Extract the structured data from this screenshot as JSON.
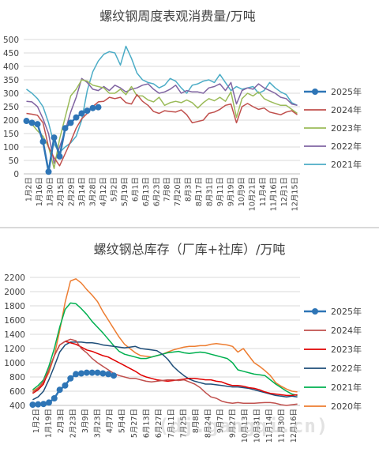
{
  "chart_data": [
    {
      "type": "line",
      "title": "螺纹钢周度表观消费量/万吨",
      "ylim": [
        0,
        500
      ],
      "yticks": [
        0,
        50,
        100,
        150,
        200,
        250,
        300,
        350,
        400,
        450,
        500
      ],
      "xticks": [
        "1月2日",
        "1月16日",
        "1月30日",
        "2月15日",
        "2月29日",
        "3月14日",
        "3月28日",
        "4月12日",
        "5月2日",
        "5月19日",
        "6月1日",
        "6月13日",
        "6月23日",
        "7月8日",
        "7月20日",
        "8月3日",
        "8月17日",
        "8月31日",
        "9月11日",
        "9月19日",
        "10月9日",
        "10月21日",
        "11月4日",
        "11月16日",
        "12月1日",
        "12月15日"
      ],
      "grid": true,
      "legend_position": "right",
      "series": [
        {
          "name": "2025年",
          "color": "#2E75B6",
          "marker": true,
          "values": [
            197,
            190,
            185,
            120,
            8,
            135,
            65,
            170,
            190,
            210,
            225,
            235,
            245,
            248
          ]
        },
        {
          "name": "2024年",
          "color": "#C0504D",
          "values": [
            225,
            222,
            218,
            190,
            100,
            60,
            30,
            75,
            120,
            170,
            205,
            225,
            250,
            268,
            270,
            285,
            280,
            285,
            265,
            260,
            295,
            270,
            255,
            232,
            225,
            235,
            232,
            230,
            238,
            220,
            190,
            195,
            200,
            225,
            230,
            240,
            255,
            260,
            190,
            250,
            262,
            250,
            240,
            245,
            230,
            225,
            220,
            230,
            235,
            220
          ]
        },
        {
          "name": "2023年",
          "color": "#9BBB59",
          "values": [
            200,
            185,
            160,
            140,
            100,
            20,
            130,
            210,
            290,
            315,
            350,
            345,
            330,
            325,
            320,
            300,
            300,
            315,
            295,
            325,
            290,
            290,
            275,
            268,
            285,
            255,
            265,
            270,
            265,
            275,
            265,
            245,
            265,
            280,
            272,
            285,
            270,
            305,
            210,
            280,
            300,
            290,
            305,
            280,
            270,
            262,
            255,
            255,
            240,
            225
          ]
        },
        {
          "name": "2022年",
          "color": "#8064A2",
          "values": [
            270,
            268,
            250,
            205,
            150,
            40,
            100,
            160,
            230,
            285,
            355,
            340,
            315,
            310,
            325,
            310,
            330,
            320,
            305,
            315,
            320,
            330,
            335,
            315,
            300,
            305,
            315,
            330,
            300,
            310,
            305,
            305,
            300,
            320,
            325,
            335,
            310,
            340,
            260,
            310,
            320,
            315,
            335,
            320,
            310,
            300,
            285,
            280,
            260,
            255
          ]
        },
        {
          "name": "2021年",
          "color": "#4BACC6",
          "values": [
            315,
            300,
            280,
            250,
            190,
            110,
            80,
            100,
            115,
            140,
            200,
            310,
            380,
            420,
            445,
            455,
            450,
            405,
            475,
            430,
            375,
            350,
            340,
            335,
            320,
            330,
            355,
            345,
            320,
            300,
            330,
            335,
            345,
            350,
            340,
            370,
            340,
            310,
            325,
            315,
            320,
            325,
            300,
            310,
            340,
            320,
            305,
            295,
            265,
            255
          ]
        }
      ]
    },
    {
      "type": "line",
      "title": "螺纹钢总库存（厂库+社库）/万吨",
      "ylim": [
        400,
        2200
      ],
      "yticks": [
        400,
        600,
        800,
        1000,
        1200,
        1400,
        1600,
        1800,
        2000,
        2200
      ],
      "xticks": [
        "1月2日",
        "1月19日",
        "2月3日",
        "2月23日",
        "3月9日",
        "3月23日",
        "4月7日",
        "5月4日",
        "5月27日",
        "6月13日",
        "6月27日",
        "7月11日",
        "7月25日",
        "8月8日",
        "8月24日",
        "9月7日",
        "9月27日",
        "10月13日",
        "10月31日",
        "11月14日",
        "11月30日",
        "12月16日"
      ],
      "grid": true,
      "legend_position": "right",
      "series": [
        {
          "name": "2025年",
          "color": "#2E75B6",
          "marker": true,
          "values": [
            410,
            415,
            420,
            440,
            500,
            620,
            680,
            780,
            840,
            850,
            860,
            860,
            860,
            850,
            840,
            820
          ]
        },
        {
          "name": "2024年",
          "color": "#C0504D",
          "values": [
            580,
            640,
            740,
            900,
            1100,
            1250,
            1300,
            1330,
            1310,
            1200,
            1140,
            1060,
            1000,
            950,
            900,
            850,
            820,
            800,
            780,
            780,
            760,
            740,
            730,
            740,
            750,
            760,
            760,
            750,
            760,
            730,
            700,
            650,
            580,
            520,
            500,
            460,
            440,
            430,
            440,
            430,
            430,
            430,
            435,
            440,
            440,
            430,
            410,
            400,
            410,
            420
          ]
        },
        {
          "name": "2023年",
          "color": "#E00000",
          "values": [
            570,
            620,
            700,
            900,
            1100,
            1250,
            1300,
            1280,
            1260,
            1220,
            1180,
            1160,
            1130,
            1100,
            1080,
            1040,
            1000,
            960,
            920,
            880,
            830,
            800,
            780,
            760,
            750,
            740,
            750,
            760,
            770,
            780,
            780,
            770,
            760,
            760,
            740,
            730,
            700,
            680,
            680,
            670,
            650,
            640,
            620,
            590,
            570,
            560,
            550,
            540,
            540,
            550
          ]
        },
        {
          "name": "2022年",
          "color": "#1F4E79",
          "values": [
            480,
            520,
            600,
            760,
            950,
            1150,
            1250,
            1290,
            1290,
            1290,
            1280,
            1280,
            1270,
            1250,
            1240,
            1230,
            1220,
            1210,
            1220,
            1230,
            1200,
            1190,
            1180,
            1170,
            1120,
            1050,
            950,
            880,
            820,
            770,
            740,
            720,
            700,
            700,
            690,
            680,
            670,
            660,
            660,
            650,
            640,
            620,
            600,
            580,
            560,
            540,
            530,
            520,
            530,
            520
          ]
        },
        {
          "name": "2021年",
          "color": "#00B050",
          "values": [
            620,
            680,
            760,
            950,
            1200,
            1500,
            1750,
            1840,
            1830,
            1760,
            1680,
            1580,
            1500,
            1420,
            1330,
            1240,
            1160,
            1120,
            1100,
            1080,
            1060,
            1060,
            1080,
            1100,
            1120,
            1140,
            1150,
            1160,
            1140,
            1130,
            1140,
            1150,
            1140,
            1120,
            1100,
            1080,
            1060,
            1000,
            900,
            880,
            860,
            840,
            830,
            820,
            760,
            700,
            650,
            600,
            560,
            540
          ]
        },
        {
          "name": "2020年",
          "color": "#ED7D31",
          "values": [
            600,
            650,
            720,
            860,
            1100,
            1450,
            1850,
            2150,
            2180,
            2120,
            2030,
            1950,
            1860,
            1720,
            1600,
            1480,
            1360,
            1260,
            1200,
            1140,
            1100,
            1090,
            1080,
            1100,
            1120,
            1150,
            1180,
            1200,
            1220,
            1230,
            1230,
            1240,
            1240,
            1260,
            1270,
            1260,
            1250,
            1230,
            1150,
            1200,
            1100,
            1000,
            950,
            890,
            820,
            720,
            670,
            630,
            600,
            590
          ]
        }
      ]
    }
  ],
  "watermark": "(dj.gangqi.cn)"
}
